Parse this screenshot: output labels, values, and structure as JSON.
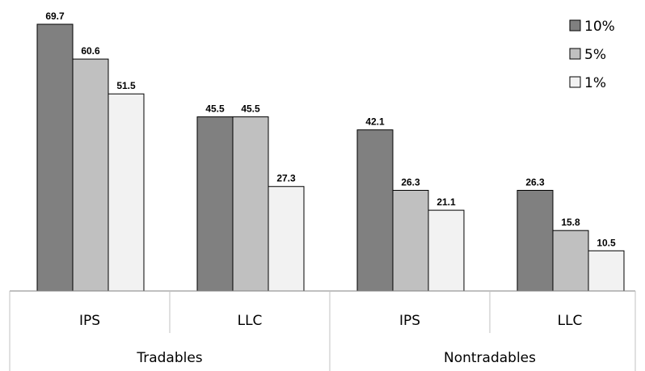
{
  "chart_data": {
    "type": "bar",
    "title": "",
    "xlabel": "",
    "ylabel": "",
    "ylim": [
      0,
      70
    ],
    "grid": false,
    "legend_position": "top-right",
    "groups": [
      {
        "label": "Tradables",
        "subcategories": [
          "IPS",
          "LLC"
        ]
      },
      {
        "label": "Nontradables",
        "subcategories": [
          "IPS",
          "LLC"
        ]
      }
    ],
    "categories": [
      "IPS",
      "LLC",
      "IPS",
      "LLC"
    ],
    "series": [
      {
        "name": "10%",
        "color": "#808080",
        "values": [
          69.7,
          45.5,
          42.1,
          26.3
        ]
      },
      {
        "name": "5%",
        "color": "#c0c0c0",
        "values": [
          60.6,
          45.5,
          26.3,
          15.8
        ]
      },
      {
        "name": "1%",
        "color": "#f2f2f2",
        "values": [
          51.5,
          27.3,
          21.1,
          10.5
        ]
      }
    ]
  }
}
